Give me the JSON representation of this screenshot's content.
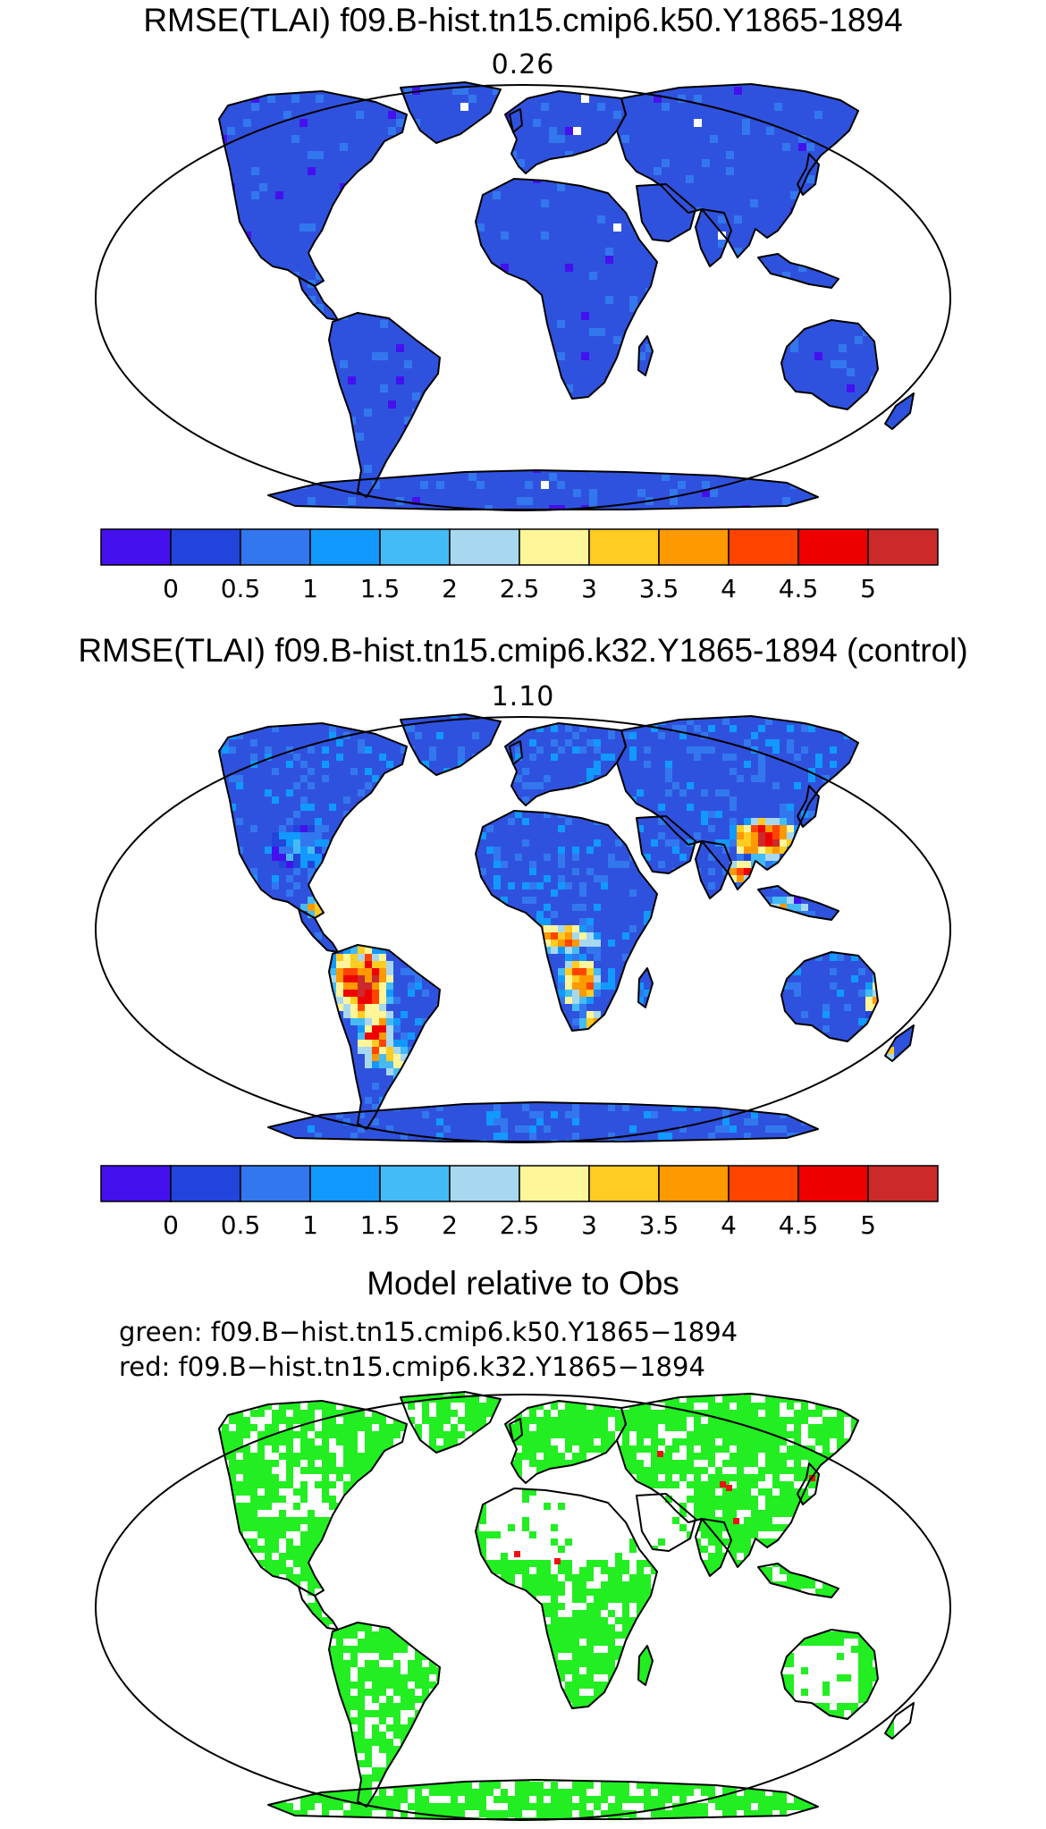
{
  "panels": [
    {
      "title": "RMSE(TLAI) f09.B-hist.tn15.cmip6.k50.Y1865-1894",
      "value_label": "0.26",
      "colorbar_ticks": [
        "0",
        "0.5",
        "1",
        "1.5",
        "2",
        "2.5",
        "3",
        "3.5",
        "4",
        "4.5",
        "5"
      ],
      "hotspots": "none"
    },
    {
      "title": "RMSE(TLAI) f09.B-hist.tn15.cmip6.k32.Y1865-1894 (control)",
      "value_label": "1.10",
      "colorbar_ticks": [
        "0",
        "0.5",
        "1",
        "1.5",
        "2",
        "2.5",
        "3",
        "3.5",
        "4",
        "4.5",
        "5"
      ],
      "hotspots": "tropics-high"
    },
    {
      "title": "Model relative to Obs",
      "legend_green": "green:  f09.B−hist.tn15.cmip6.k50.Y1865−1894",
      "legend_red": "red:  f09.B−hist.tn15.cmip6.k32.Y1865−1894"
    }
  ],
  "colorbar_colors": [
    "#4411ee",
    "#2244dd",
    "#3377ee",
    "#1199ff",
    "#44bbf5",
    "#a8d8f0",
    "#fff599",
    "#ffcc22",
    "#ff9900",
    "#ff4400",
    "#ee0000",
    "#cc2a2a"
  ],
  "land_color": "#2f52de",
  "comparison_colors": {
    "green": "#22ee22",
    "red": "#ee1111"
  }
}
